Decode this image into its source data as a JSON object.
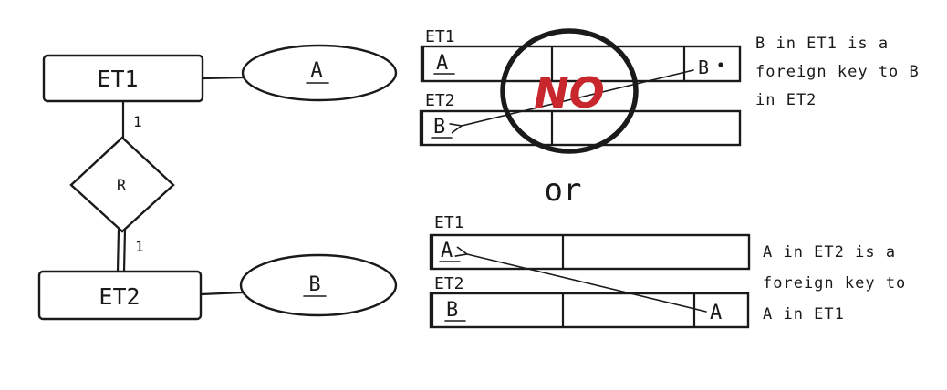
{
  "er": {
    "entity1": "ET1",
    "entity2": "ET2",
    "relationship": "R",
    "attr1": "A",
    "attr2": "B",
    "card_top": "1",
    "card_bottom": "1"
  },
  "top_option": {
    "table1_label": "ET1",
    "table1_key": "A",
    "table1_fk": "B",
    "table2_label": "ET2",
    "table2_key": "B",
    "stamp": "NO",
    "note": [
      "B in ET1 is a",
      "foreign key to B",
      "in ET2"
    ]
  },
  "separator": "or",
  "bottom_option": {
    "table1_label": "ET1",
    "table1_key": "A",
    "table2_label": "ET2",
    "table2_key": "B",
    "table2_fk": "A",
    "note": [
      "A in ET2 is a",
      "foreign key to",
      "A in ET1"
    ]
  },
  "colors": {
    "ink": "#1a1a1a",
    "stamp": "#c8282d"
  }
}
